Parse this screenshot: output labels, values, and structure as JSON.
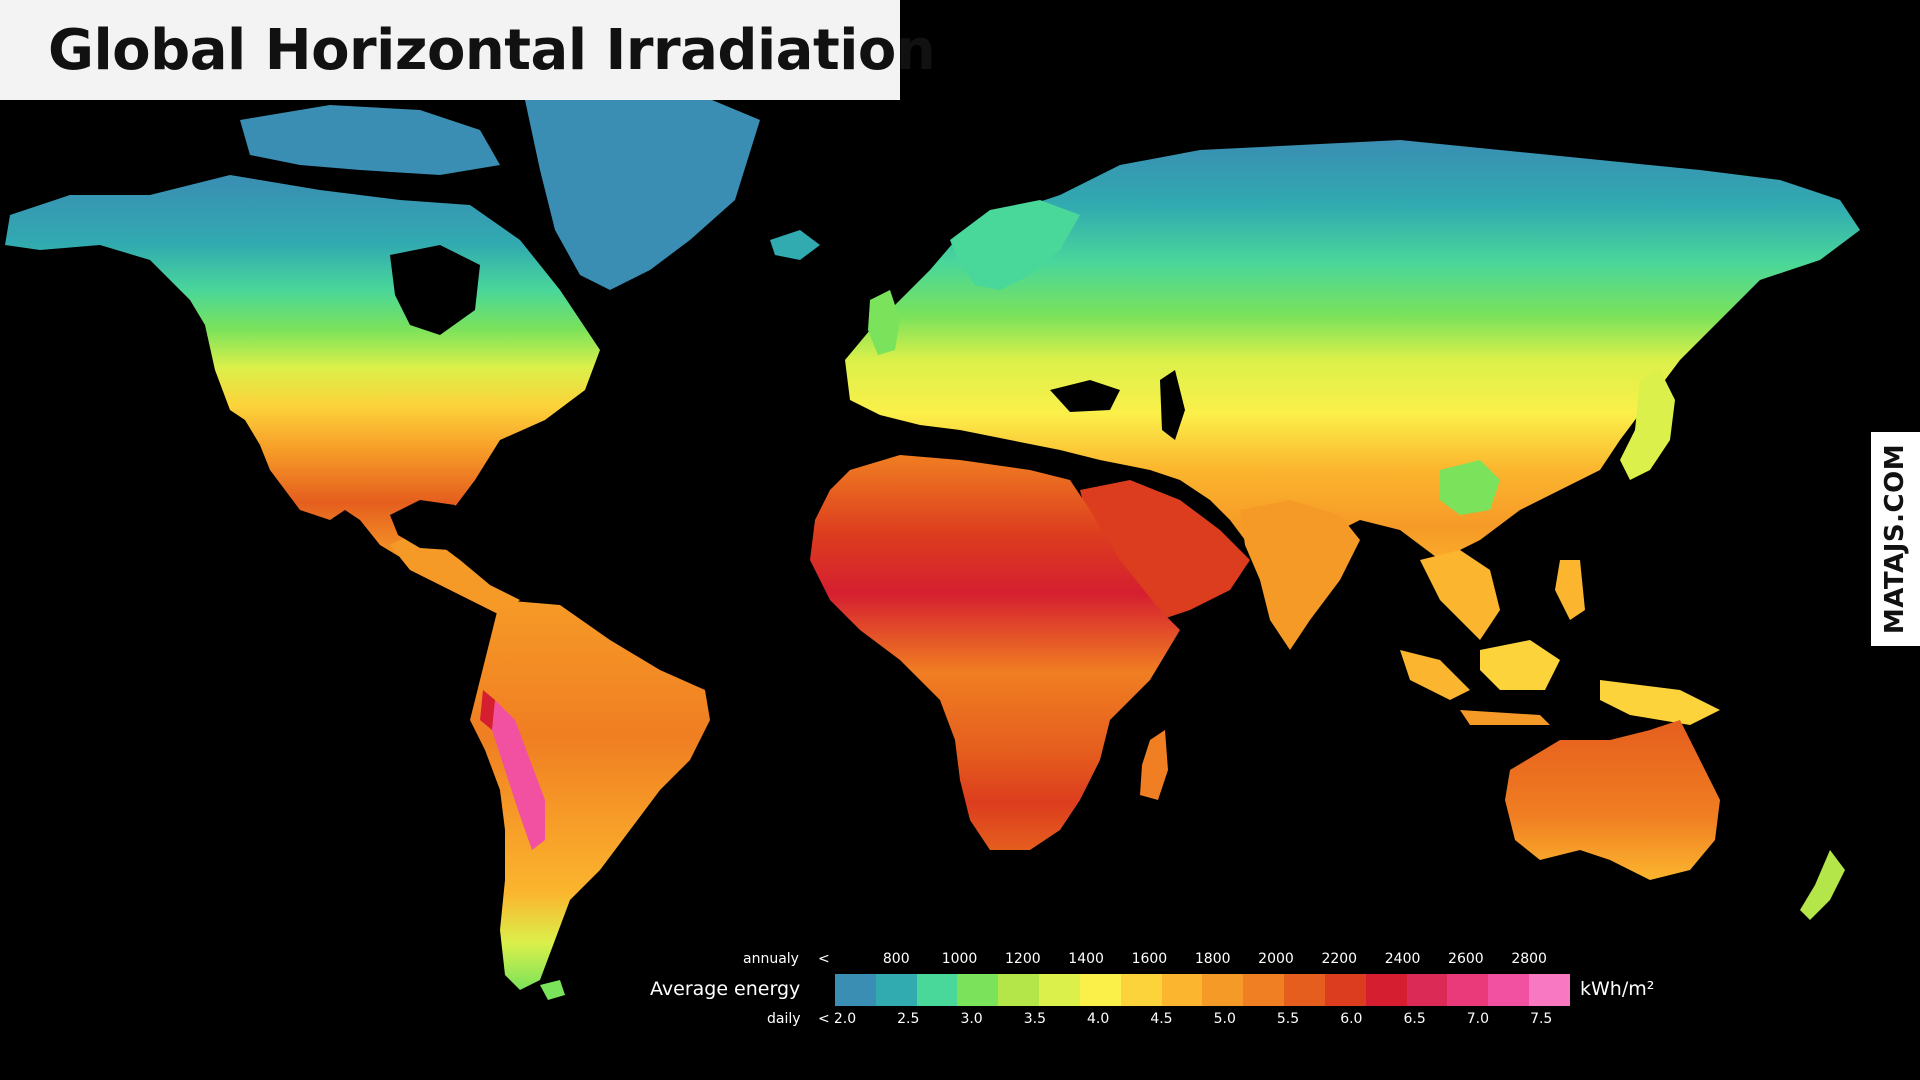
{
  "title": "Global Horizontal Irradiation",
  "brand": "MATAJS.COM",
  "legend": {
    "title": "Average energy",
    "unit": "kWh/m²",
    "annual_label": "annualy",
    "daily_label": "daily",
    "less_than": "<",
    "annual_ticks": [
      "800",
      "1000",
      "1200",
      "1400",
      "1600",
      "1800",
      "2000",
      "2200",
      "2400",
      "2600",
      "2800"
    ],
    "daily_ticks": [
      "2.0",
      "2.5",
      "3.0",
      "3.5",
      "4.0",
      "4.5",
      "5.0",
      "5.5",
      "6.0",
      "6.5",
      "7.0",
      "7.5"
    ],
    "colors": [
      "#3a8eb3",
      "#31aab0",
      "#4ad79a",
      "#7ae25b",
      "#b4e64a",
      "#dbf04a",
      "#fbf04a",
      "#fcd33a",
      "#fbb52e",
      "#f69a27",
      "#f07e22",
      "#e55e1e",
      "#dc3d1e",
      "#d51f30",
      "#dc2a56",
      "#ea3a7a",
      "#f250a0",
      "#f878c2"
    ]
  },
  "map_colors": {
    "ocean": "#000000",
    "arctic": "#3a8eb3",
    "cold": "#31aab0",
    "cool": "#4ad79a",
    "mild": "#7ae25b",
    "temperate": "#b4e64a",
    "warm": "#fbf04a",
    "sunny": "#fbb52e",
    "hot": "#f07e22",
    "very_hot": "#dc3d1e",
    "extreme": "#d51f30",
    "peak": "#f250a0"
  }
}
